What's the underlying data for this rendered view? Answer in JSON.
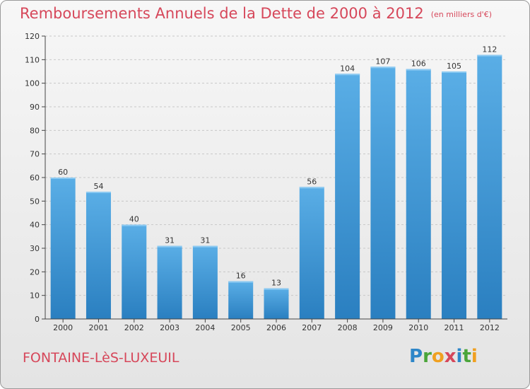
{
  "title": "Remboursements Annuels de la Dette de 2000 à 2012",
  "subtitle": "(en milliers d'€)",
  "commune": "FONTAINE-LèS-LUXEUIL",
  "logo": {
    "letters": [
      "P",
      "r",
      "o",
      "x",
      "i",
      "t",
      "i"
    ],
    "colors": [
      "#2e86c8",
      "#4aa53a",
      "#f0a020",
      "#d6475a",
      "#2e86c8",
      "#4aa53a",
      "#f0a020"
    ]
  },
  "colors": {
    "bar": "#4ea3dc",
    "bar_dark": "#2a7fc0",
    "title": "#d6475a"
  },
  "chart_data": {
    "type": "bar",
    "categories": [
      "2000",
      "2001",
      "2002",
      "2003",
      "2004",
      "2005",
      "2006",
      "2007",
      "2008",
      "2009",
      "2010",
      "2011",
      "2012"
    ],
    "values": [
      60,
      54,
      40,
      31,
      31,
      16,
      13,
      56,
      104,
      107,
      106,
      105,
      112
    ],
    "title": "Remboursements Annuels de la Dette de 2000 à 2012",
    "ylim": [
      0,
      120
    ],
    "yticks": [
      0,
      10,
      20,
      30,
      40,
      50,
      60,
      70,
      80,
      90,
      100,
      110,
      120
    ],
    "grid": true
  }
}
